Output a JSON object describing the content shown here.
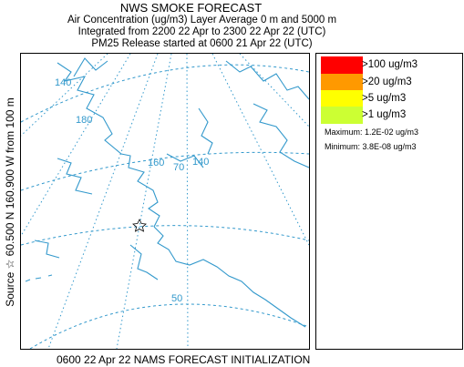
{
  "header": {
    "title": "NWS SMOKE FORECAST",
    "line1": "Air Concentration (ug/m3) Layer Average     0 m  and  5000 m",
    "line2": "Integrated from 2200 22 Apr to 2300 22 Apr 22 (UTC)",
    "line3": "PM25 Release started at 0600 21 Apr 22 (UTC)"
  },
  "side_label": "Source ☆  60.500  N 160.900  W    from  100 m",
  "footer": "0600 22 Apr 22 NAMS FORECAST INITIALIZATION",
  "legend": {
    "items": [
      {
        "label": ">100 ug/m3",
        "color": "#ff0000"
      },
      {
        "label": ">20 ug/m3",
        "color": "#ff9900"
      },
      {
        "label": ">5 ug/m3",
        "color": "#ffff00"
      },
      {
        "label": ">1 ug/m3",
        "color": "#ccff33"
      }
    ],
    "maximum": "Maximum: 1.2E-02 ug/m3",
    "minimum": "Minimum: 3.8E-08 ug/m3"
  },
  "map": {
    "grid_labels": [
      "140",
      "180",
      "160",
      "70",
      "140",
      "50"
    ],
    "line_color": "#3399cc",
    "source_marker": "star-icon"
  }
}
